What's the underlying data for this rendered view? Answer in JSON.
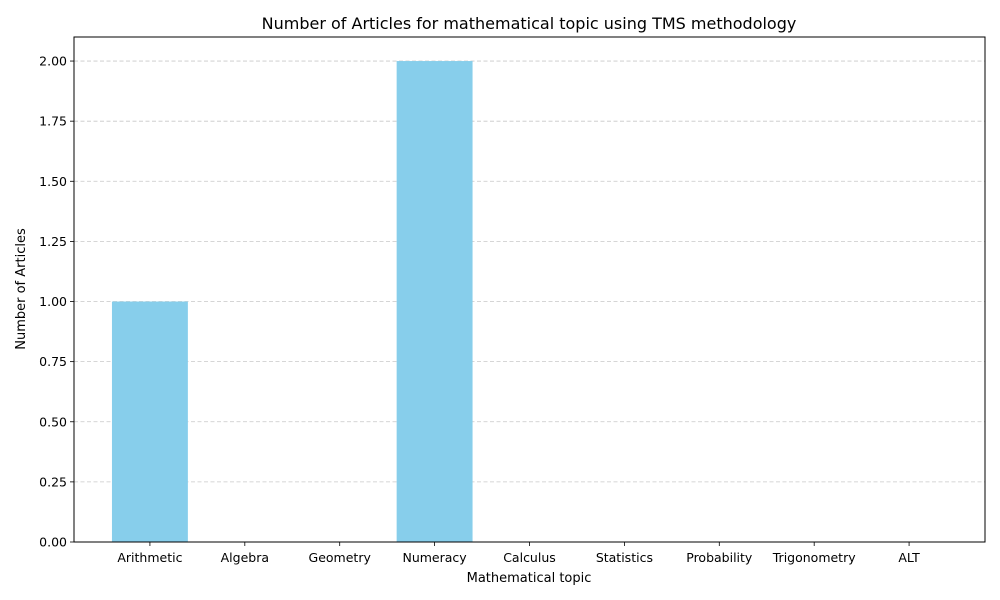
{
  "chart_data": {
    "type": "bar",
    "title": "Number of Articles for mathematical topic using TMS methodology",
    "xlabel": "Mathematical topic",
    "ylabel": "Number of Articles",
    "categories": [
      "Arithmetic",
      "Algebra",
      "Geometry",
      "Numeracy",
      "Calculus",
      "Statistics",
      "Probability",
      "Trigonometry",
      "ALT"
    ],
    "values": [
      1,
      0,
      0,
      2,
      0,
      0,
      0,
      0,
      0
    ],
    "ylim": [
      0,
      2.1
    ],
    "yticks": [
      "0.00",
      "0.25",
      "0.50",
      "0.75",
      "1.00",
      "1.25",
      "1.50",
      "1.75",
      "2.00"
    ],
    "grid": "y-dashed",
    "bar_color": "#87CEEB",
    "grid_color": "#c8c8c8"
  }
}
